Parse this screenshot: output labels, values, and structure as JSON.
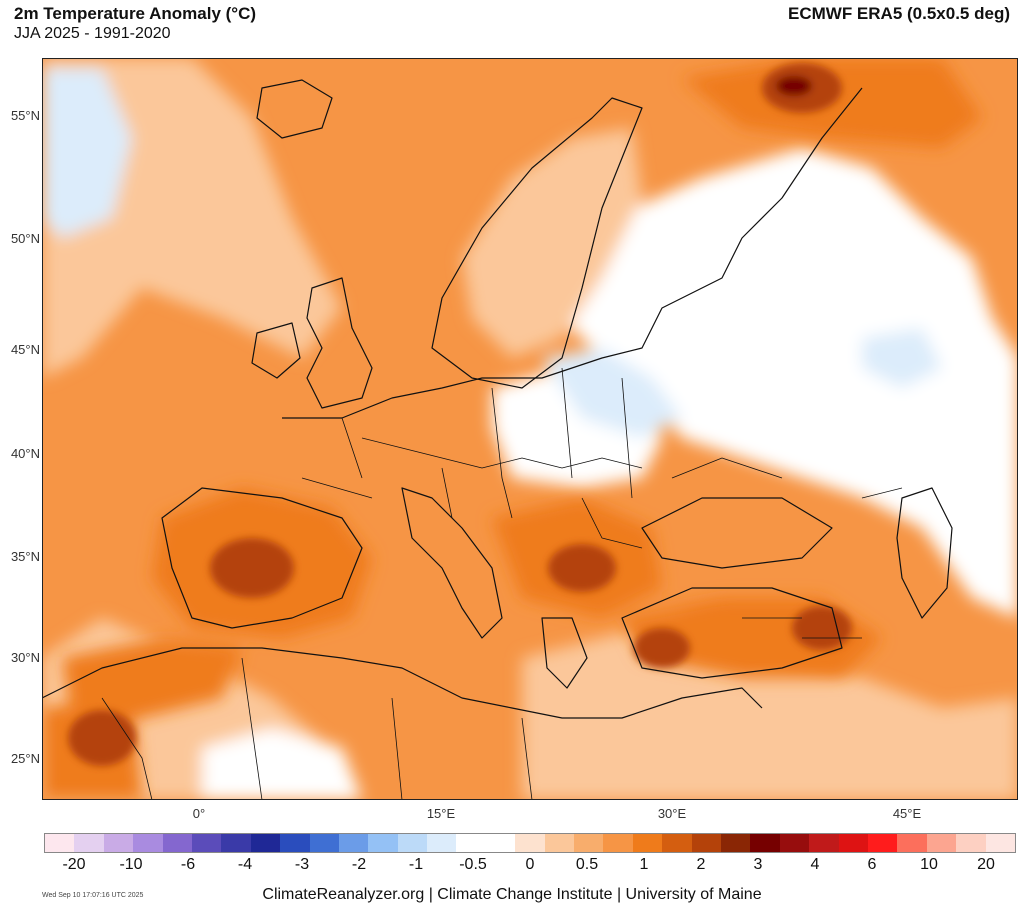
{
  "header": {
    "title": "2m Temperature Anomaly (°C)",
    "subtitle": "JJA 2025 - 1991-2020",
    "source": "ECMWF ERA5 (0.5x0.5 deg)"
  },
  "axes": {
    "lat_labels": [
      "55°N",
      "50°N",
      "45°N",
      "40°N",
      "35°N",
      "30°N",
      "25°N"
    ],
    "lon_labels": [
      "0°",
      "15°E",
      "30°E",
      "45°E"
    ]
  },
  "colorbar": {
    "labels": [
      "-20",
      "-10",
      "-6",
      "-4",
      "-3",
      "-2",
      "-1",
      "-0.5",
      "0",
      "0.5",
      "1",
      "2",
      "3",
      "4",
      "6",
      "10",
      "20"
    ],
    "colors": [
      "#fde7ee",
      "#e4d0f0",
      "#c9abe6",
      "#a98be0",
      "#8467cf",
      "#5b4cba",
      "#3a3aa8",
      "#1f2896",
      "#2a4dbd",
      "#3f6fd3",
      "#6b9ce8",
      "#94c1f5",
      "#bcdaf8",
      "#dcecfb",
      "#ffffff",
      "#ffffff",
      "#fde2cf",
      "#fbc79a",
      "#f8ad6c",
      "#f69545",
      "#ef7b1b",
      "#d45e10",
      "#b4420a",
      "#8a2605",
      "#760000",
      "#970d0d",
      "#c01a1a",
      "#de1313",
      "#ff1c1c",
      "#fc6f5c",
      "#fca590",
      "#fdd0c2",
      "#fde6e2"
    ]
  },
  "footer": {
    "timestamp": "Wed Sep 10 17:07:16 UTC 2025",
    "credit": "ClimateReanalyzer.org | Climate Change Institute | University of Maine"
  },
  "map": {
    "region": "Europe",
    "field": "2m temperature anomaly",
    "colors": {
      "water": "#f69545",
      "land_base": "#fbc79a",
      "warm": "#ef7b1b",
      "hot": "#b4420a",
      "very_hot": "#760000",
      "neutral": "#ffffff",
      "cool": "#dcecfb"
    }
  }
}
